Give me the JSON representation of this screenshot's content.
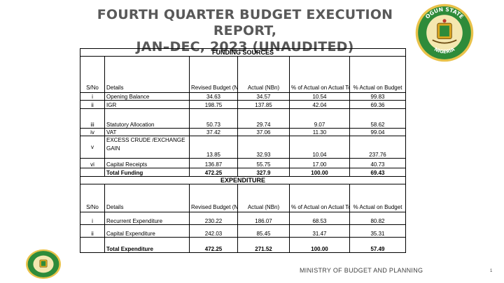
{
  "title_line1": "FOURTH QUARTER BUDGET EXECUTION REPORT,",
  "title_line2": "JAN–DEC, 2023 (UNAUDITED)",
  "seal": {
    "top": "OGUN STATE",
    "bottom": "NIGERIA"
  },
  "funding": {
    "section_title": "FUNDING SOURCES",
    "headers": {
      "sno": "S/No",
      "details": "Details",
      "revised": "Revised Budget (NBn)",
      "actual": "Actual (NBn)",
      "pct_total": "% of Actual on Actual Total Funding",
      "pct_budget": "% Actual on Budget"
    },
    "rows": [
      {
        "sno": "i",
        "details": "Opening Balance",
        "revised": "34.63",
        "actual": "34.57",
        "pct_total": "10.54",
        "pct_budget": "99.83"
      },
      {
        "sno": "ii",
        "details": "IGR",
        "revised": "198.75",
        "actual": "137.85",
        "pct_total": "42.04",
        "pct_budget": "69.36"
      },
      {
        "sno": "iii",
        "details": "Statutory Allocation",
        "revised": "50.73",
        "actual": "29.74",
        "pct_total": "9.07",
        "pct_budget": "58.62"
      },
      {
        "sno": "iv",
        "details": "VAT",
        "revised": "37.42",
        "actual": "37.06",
        "pct_total": "11.30",
        "pct_budget": "99.04"
      },
      {
        "sno": "v",
        "details_line1": "EXCESS CRUDE  /EXCHANGE",
        "details_line2": "GAIN",
        "revised": "13.85",
        "actual": "32.93",
        "pct_total": "10.04",
        "pct_budget": "237.76"
      },
      {
        "sno": "vi",
        "details": "Capital Receipts",
        "revised": "136.87",
        "actual": "55.75",
        "pct_total": "17.00",
        "pct_budget": "40.73"
      }
    ],
    "total": {
      "details": "Total Funding",
      "revised": "472.25",
      "actual": "327.9",
      "pct_total": "100.00",
      "pct_budget": "69.43"
    }
  },
  "expenditure": {
    "section_title": "EXPENDITURE",
    "headers": {
      "sno": "S/No",
      "details": "Details",
      "revised": "Revised Budget (NBn)",
      "actual": "Actual (NBn)",
      "pct_total": "% of Actual on Actual Total Expenditure",
      "pct_budget": "% Actual on Budget"
    },
    "rows": [
      {
        "sno": "i",
        "details": "Recurrent Expenditure",
        "revised": "230.22",
        "actual": "186.07",
        "pct_total": "68.53",
        "pct_budget": "80.82"
      },
      {
        "sno": "ii",
        "details": "Capital Expenditure",
        "revised": "242.03",
        "actual": "85.45",
        "pct_total": "31.47",
        "pct_budget": "35.31"
      }
    ],
    "total": {
      "details": "Total Expenditure",
      "revised": "472.25",
      "actual": "271.52",
      "pct_total": "100.00",
      "pct_budget": "57.49"
    }
  },
  "footer": "MINISTRY OF BUDGET AND PLANNING",
  "page_number": "1",
  "colors": {
    "title": "#595959",
    "seal_green": "#2e8b3a",
    "seal_gold": "#d8a520"
  }
}
